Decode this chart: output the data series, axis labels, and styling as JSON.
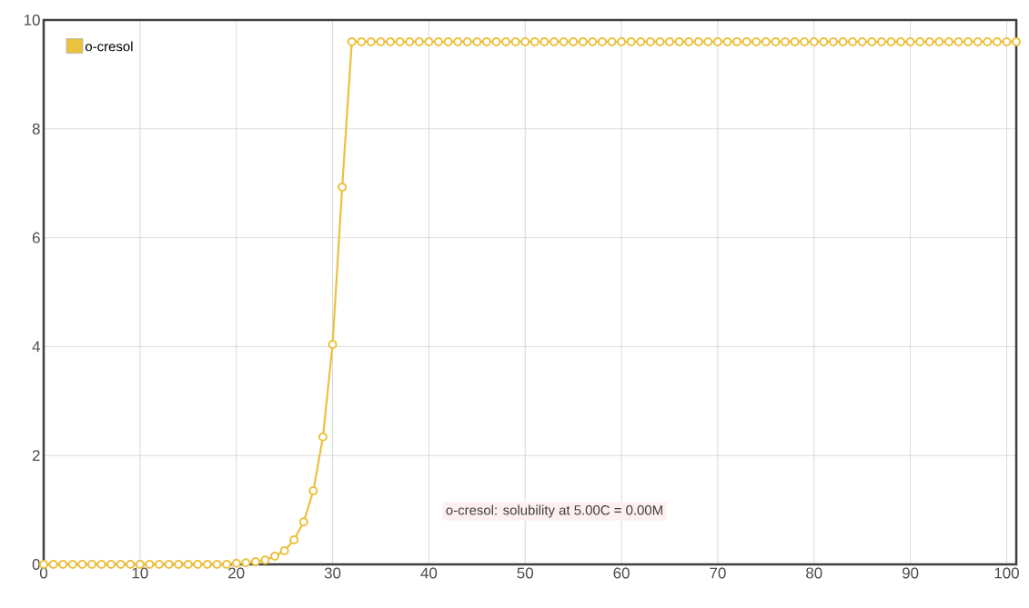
{
  "chart_data": {
    "type": "line",
    "x": [
      0,
      1,
      2,
      3,
      4,
      5,
      6,
      7,
      8,
      9,
      10,
      11,
      12,
      13,
      14,
      15,
      16,
      17,
      18,
      19,
      20,
      21,
      22,
      23,
      24,
      25,
      26,
      27,
      28,
      29,
      30,
      31,
      32,
      33,
      34,
      35,
      36,
      37,
      38,
      39,
      40,
      41,
      42,
      43,
      44,
      45,
      46,
      47,
      48,
      49,
      50,
      51,
      52,
      53,
      54,
      55,
      56,
      57,
      58,
      59,
      60,
      61,
      62,
      63,
      64,
      65,
      66,
      67,
      68,
      69,
      70,
      71,
      72,
      73,
      74,
      75,
      76,
      77,
      78,
      79,
      80,
      81,
      82,
      83,
      84,
      85,
      86,
      87,
      88,
      89,
      90,
      91,
      92,
      93,
      94,
      95,
      96,
      97,
      98,
      99,
      100,
      101
    ],
    "series": [
      {
        "name": "o-cresol",
        "color": "#ecc13f",
        "values": [
          0,
          0,
          0,
          0,
          0,
          0,
          0,
          0,
          0,
          0,
          0,
          0,
          0,
          0,
          0,
          0,
          0,
          0,
          0,
          0,
          0.02,
          0.03,
          0.05,
          0.08,
          0.15,
          0.25,
          0.45,
          0.78,
          1.35,
          2.34,
          4.04,
          6.93,
          9.6,
          9.6,
          9.6,
          9.6,
          9.6,
          9.6,
          9.6,
          9.6,
          9.6,
          9.6,
          9.6,
          9.6,
          9.6,
          9.6,
          9.6,
          9.6,
          9.6,
          9.6,
          9.6,
          9.6,
          9.6,
          9.6,
          9.6,
          9.6,
          9.6,
          9.6,
          9.6,
          9.6,
          9.6,
          9.6,
          9.6,
          9.6,
          9.6,
          9.6,
          9.6,
          9.6,
          9.6,
          9.6,
          9.6,
          9.6,
          9.6,
          9.6,
          9.6,
          9.6,
          9.6,
          9.6,
          9.6,
          9.6,
          9.6,
          9.6,
          9.6,
          9.6,
          9.6,
          9.6,
          9.6,
          9.6,
          9.6,
          9.6,
          9.6,
          9.6,
          9.6,
          9.6,
          9.6,
          9.6,
          9.6,
          9.6,
          9.6,
          9.6,
          9.6,
          9.6
        ]
      }
    ],
    "xlim": [
      0,
      101
    ],
    "ylim": [
      0,
      10
    ],
    "xticks": [
      0,
      10,
      20,
      30,
      40,
      50,
      60,
      70,
      80,
      90,
      100
    ],
    "yticks": [
      0,
      2,
      4,
      6,
      8,
      10
    ],
    "grid": true,
    "legend": "top left",
    "marker": "circle",
    "line_style": "solid",
    "annotations": [
      "o-cresol: solubility at 5.00C = 0.00M"
    ]
  }
}
